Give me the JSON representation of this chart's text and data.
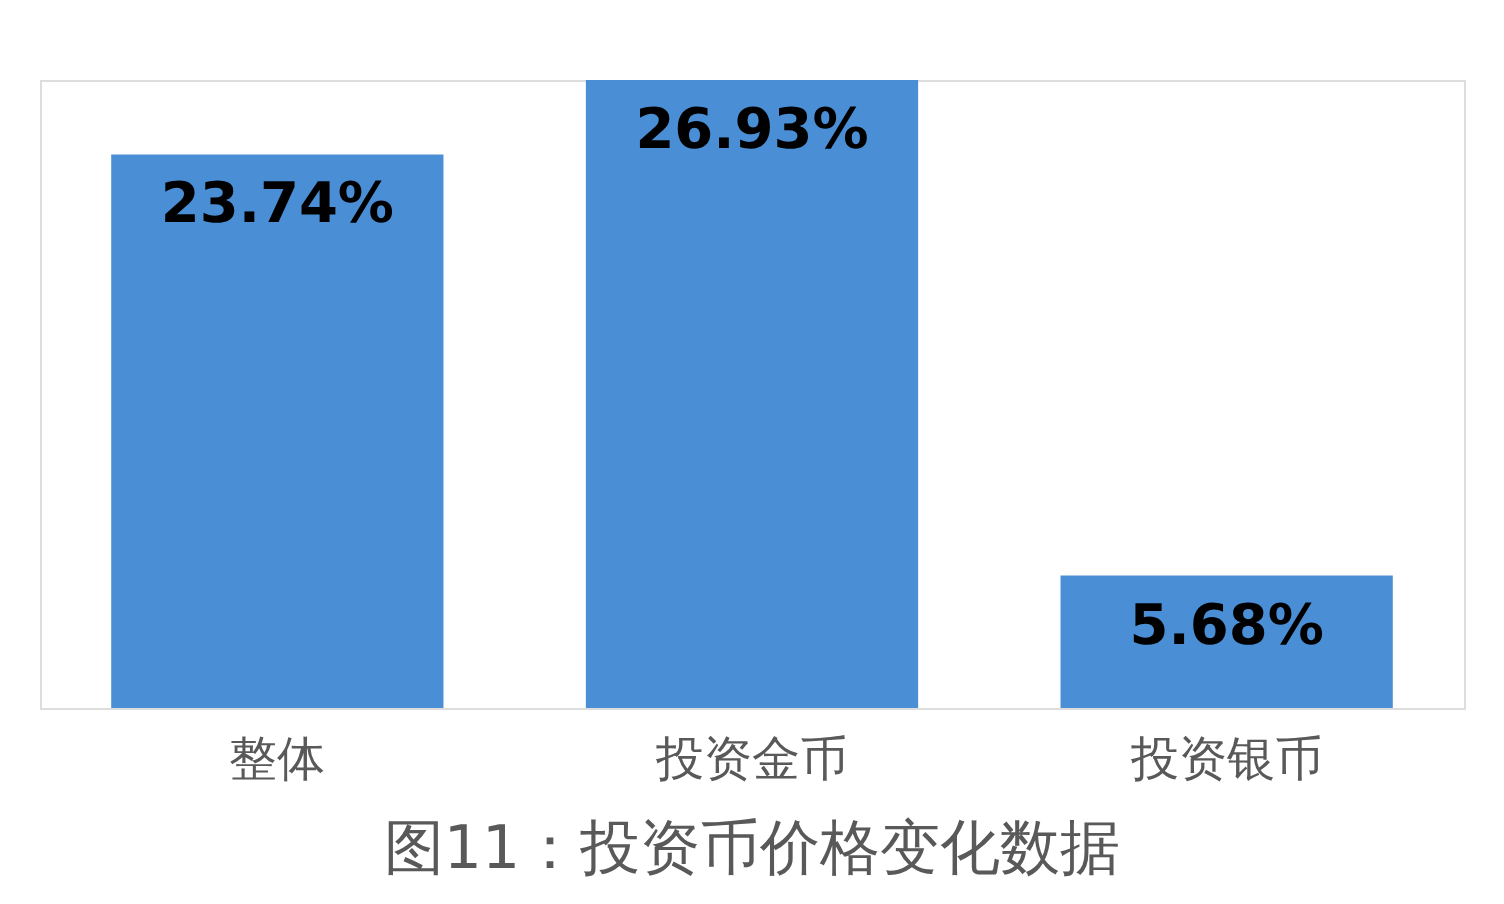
{
  "chart_data": {
    "type": "bar",
    "title": "图11：投资币价格变化数据",
    "categories": [
      "整体",
      "投资金币",
      "投资银币"
    ],
    "values": [
      23.74,
      26.93,
      5.68
    ],
    "value_labels": [
      "23.74%",
      "26.93%",
      "5.68%"
    ],
    "color": "#4a8fd6"
  }
}
